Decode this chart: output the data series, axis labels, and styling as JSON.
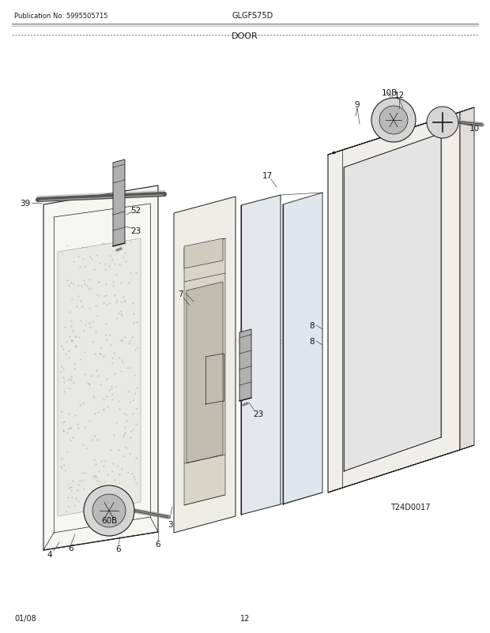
{
  "title_section": "DOOR",
  "pub_no": "Publication No: 5995505715",
  "model": "GLGFS75D",
  "date": "01/08",
  "page": "12",
  "diagram_id": "T24D0017",
  "watermark": "eReplacementParts.com",
  "bg_color": "#ffffff",
  "line_color": "#1a1a1a",
  "panel_face": "#f2f2f2",
  "panel_shadow": "#e0e0e0",
  "glass_color": "#e8eeee",
  "frame_color": "#ececec"
}
